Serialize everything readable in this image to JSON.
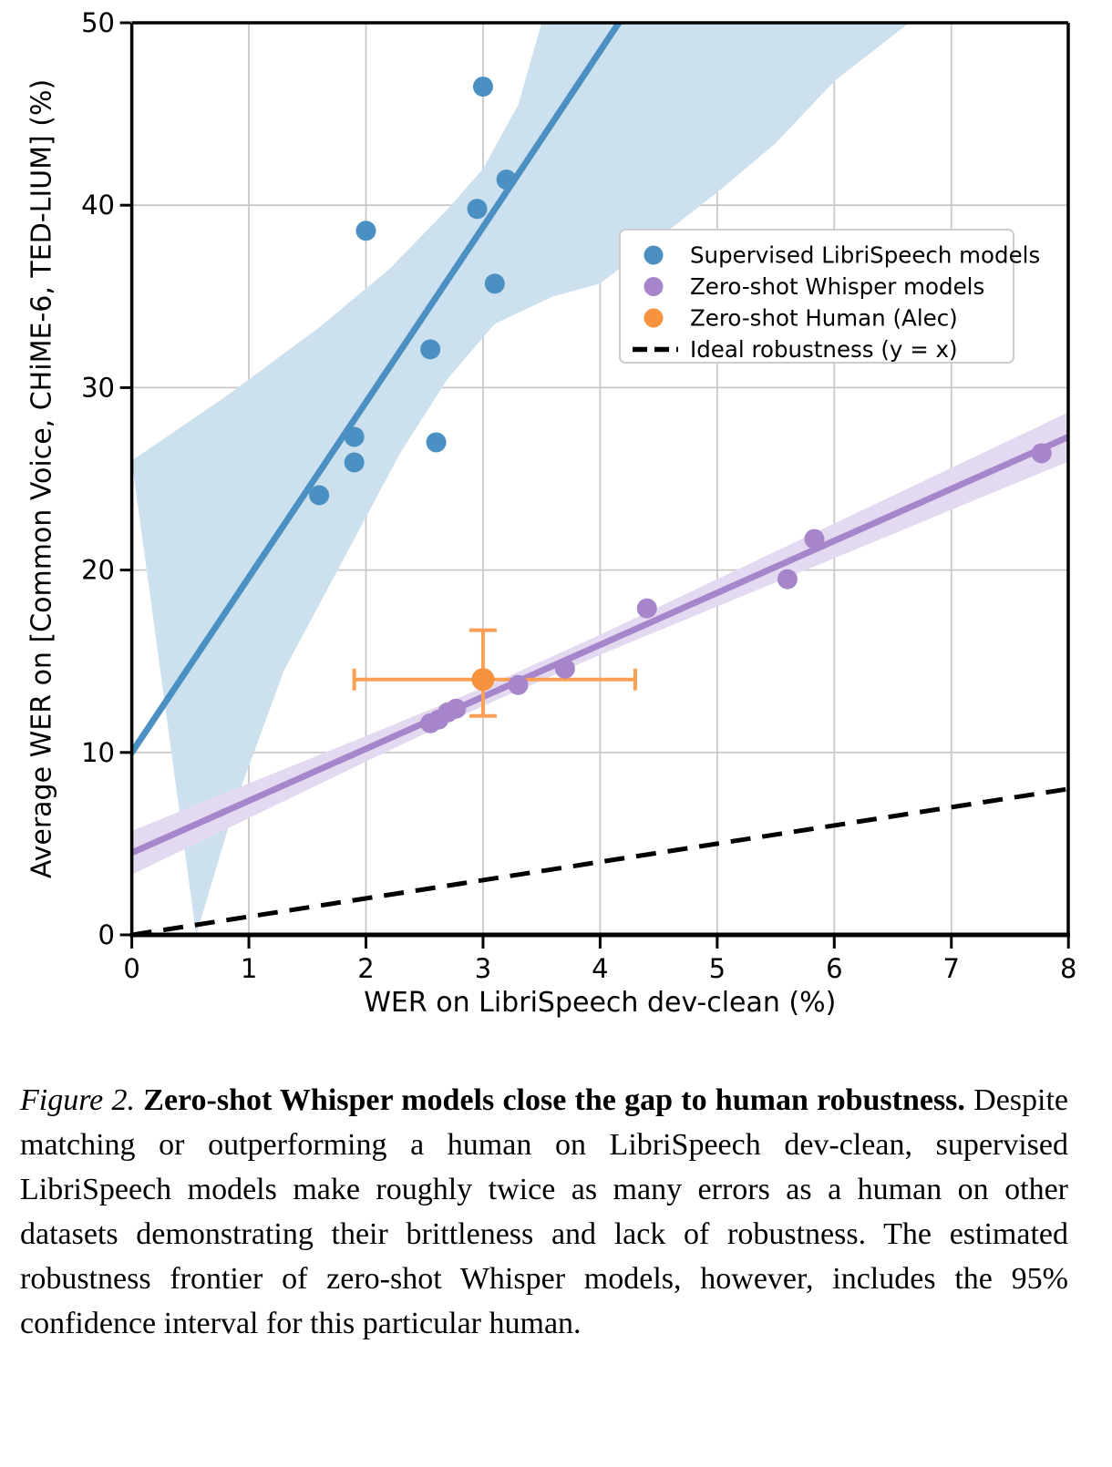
{
  "chart_data": {
    "type": "scatter",
    "xlabel": "WER on LibriSpeech dev-clean (%)",
    "ylabel": "Average WER on [Common Voice, CHiME-6, TED-LIUM] (%)",
    "xlim": [
      0,
      8
    ],
    "ylim": [
      0,
      50
    ],
    "xticks": [
      0,
      1,
      2,
      3,
      4,
      5,
      6,
      7,
      8
    ],
    "yticks": [
      0,
      10,
      20,
      30,
      40,
      50
    ],
    "grid": true,
    "legend_position": "upper right",
    "series": [
      {
        "name": "Supervised LibriSpeech models",
        "type": "scatter",
        "color": "#4a90c2",
        "band_color": "#cce0ee",
        "points": [
          [
            1.6,
            24.1
          ],
          [
            1.9,
            25.9
          ],
          [
            1.9,
            27.3
          ],
          [
            2.0,
            38.6
          ],
          [
            2.55,
            32.1
          ],
          [
            2.6,
            27.0
          ],
          [
            2.95,
            39.8
          ],
          [
            3.0,
            46.5
          ],
          [
            3.1,
            35.7
          ],
          [
            3.2,
            41.4
          ]
        ],
        "trend_line": [
          [
            0,
            10
          ],
          [
            1,
            19.6
          ],
          [
            2,
            29.2
          ],
          [
            3,
            38.8
          ],
          [
            4.16,
            50
          ]
        ],
        "band_upper": [
          [
            0,
            26
          ],
          [
            0.8,
            29.5
          ],
          [
            1.6,
            33.3
          ],
          [
            2.2,
            36.5
          ],
          [
            2.7,
            39.8
          ],
          [
            3.0,
            42
          ],
          [
            3.3,
            45.5
          ],
          [
            3.5,
            50
          ]
        ],
        "band_lower": [
          [
            0.55,
            0
          ],
          [
            0.9,
            7.5
          ],
          [
            1.3,
            14.5
          ],
          [
            1.8,
            20.5
          ],
          [
            2.3,
            26.5
          ],
          [
            2.7,
            30.5
          ],
          [
            3.1,
            33.5
          ],
          [
            3.6,
            35
          ],
          [
            4.0,
            35.7
          ],
          [
            4.5,
            38.2
          ],
          [
            5.0,
            40.7
          ],
          [
            5.5,
            43.4
          ],
          [
            6.0,
            46.8
          ],
          [
            6.64,
            50
          ]
        ]
      },
      {
        "name": "Zero-shot Whisper models",
        "type": "scatter",
        "color": "#a785cb",
        "band_color": "#e3d9f1",
        "points": [
          [
            2.55,
            11.6
          ],
          [
            2.62,
            11.8
          ],
          [
            2.7,
            12.2
          ],
          [
            2.77,
            12.4
          ],
          [
            3.3,
            13.7
          ],
          [
            3.7,
            14.6
          ],
          [
            4.4,
            17.9
          ],
          [
            5.6,
            19.5
          ],
          [
            5.83,
            21.7
          ],
          [
            7.77,
            26.4
          ]
        ],
        "trend_line": [
          [
            0,
            4.5
          ],
          [
            8,
            27.3
          ]
        ],
        "band_upper": [
          [
            0,
            5.7
          ],
          [
            2,
            10.9
          ],
          [
            3,
            13.55
          ],
          [
            4,
            16.45
          ],
          [
            5,
            19.5
          ],
          [
            6,
            22.55
          ],
          [
            7,
            25.6
          ],
          [
            8,
            28.65
          ]
        ],
        "band_lower": [
          [
            0,
            3.3
          ],
          [
            2,
            9.5
          ],
          [
            3,
            12.55
          ],
          [
            4,
            15.35
          ],
          [
            5,
            18.0
          ],
          [
            6,
            20.65
          ],
          [
            7,
            23.3
          ],
          [
            8,
            25.95
          ]
        ]
      },
      {
        "name": "Zero-shot Human (Alec)",
        "type": "point_with_error",
        "color": "#f7923f",
        "errorbar_color": "#f8a155",
        "point": [
          3.0,
          14.0
        ],
        "x_range": [
          1.9,
          4.3
        ],
        "y_range": [
          12.0,
          16.7
        ]
      },
      {
        "name": "Ideal robustness (y = x)",
        "type": "dashed_line",
        "color": "#000000",
        "line": [
          [
            0,
            0
          ],
          [
            8,
            8
          ]
        ]
      }
    ]
  },
  "caption": {
    "label": "Figure 2.",
    "bold": "Zero-shot Whisper models close the gap to human robustness.",
    "body": "Despite matching or outperforming a human on LibriSpeech dev-clean, supervised LibriSpeech models make roughly twice as many errors as a human on other datasets demonstrating their brittleness and lack of robustness. The estimated robustness frontier of zero-shot Whisper models, however, includes the 95% confidence interval for this particular human."
  }
}
